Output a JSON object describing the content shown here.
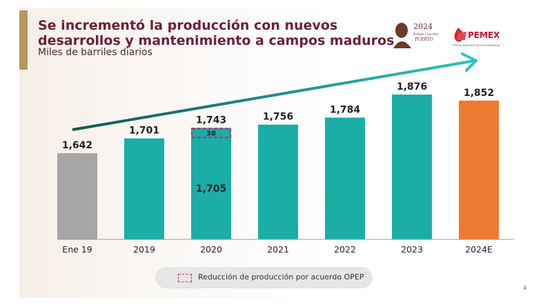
{
  "header": {
    "title": "Se incrementó la producción con nuevos desarrollos y mantenimiento a campos maduros",
    "subtitle": "Miles de barriles diarios",
    "logo_centenary": "2024 Felipe Carrillo PUERTO",
    "logo_pemex": "PEMEX",
    "logo_pemex_tagline": "POR EL RESCATE DE LA SOBERANÍA"
  },
  "chart_data": {
    "type": "bar",
    "title": "",
    "xlabel": "",
    "ylabel": "",
    "categories": [
      "Ene 19",
      "2019",
      "2020",
      "2021",
      "2022",
      "2023",
      "2024E"
    ],
    "values": [
      1642,
      1701,
      1743,
      1756,
      1784,
      1876,
      1852
    ],
    "labels": [
      "1,642",
      "1,701",
      "1,743",
      "1,756",
      "1,784",
      "1,876",
      "1,852"
    ],
    "colors": [
      "#a6a6a6",
      "#1aaea7",
      "#1aaea7",
      "#1aaea7",
      "#1aaea7",
      "#1aaea7",
      "#ec7a31"
    ],
    "breakdown_2020": {
      "base": 1705,
      "base_label": "1,705",
      "opep_reduction": 38,
      "opep_label": "38"
    },
    "trend_arrow": true,
    "grid": false,
    "legend": {
      "label": "Reducción de producción por acuerdo OPEP",
      "placement": "bottom"
    }
  },
  "page_number": "4"
}
